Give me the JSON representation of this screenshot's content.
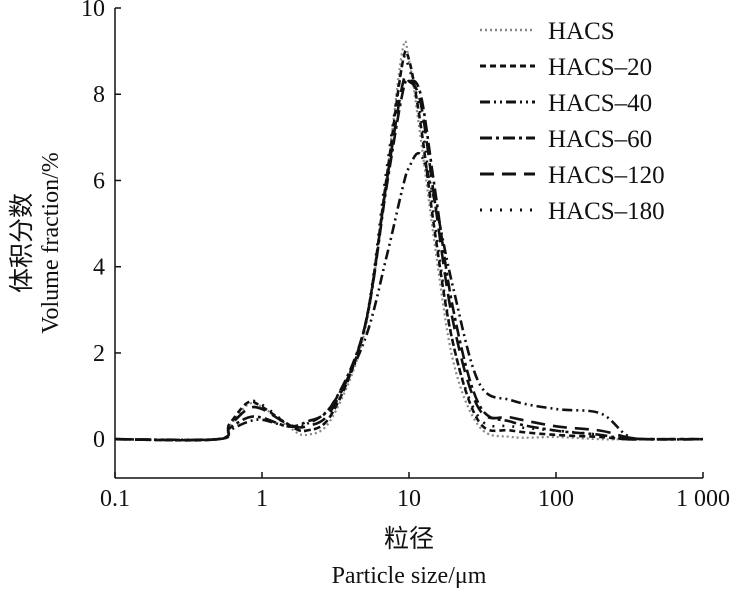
{
  "chart_data": {
    "type": "line",
    "title": "",
    "xlabel_cn": "粒径",
    "xlabel": "Particle size/μm",
    "ylabel_cn": "体积分数",
    "ylabel": "Volume fraction/%",
    "xscale": "log",
    "xlim": [
      0.1,
      1000
    ],
    "ylim": [
      -0.9,
      10
    ],
    "xticks": [
      0.1,
      1,
      10,
      100,
      1000
    ],
    "xtick_labels": [
      "0.1",
      "1",
      "10",
      "100",
      "1 000"
    ],
    "yticks": [
      0,
      2,
      4,
      6,
      8,
      10
    ],
    "ytick_labels": [
      "0",
      "2",
      "4",
      "6",
      "8",
      "10"
    ],
    "grid": false,
    "legend_position": "top-right",
    "x": [
      0.1,
      0.5,
      0.6,
      0.8,
      1,
      1.5,
      2,
      3,
      5,
      7,
      9,
      10,
      12,
      15,
      20,
      30,
      50,
      100,
      200,
      300,
      400,
      1000
    ],
    "series": [
      {
        "name": "HACS",
        "color": "#888888",
        "dash": "2 3",
        "values": [
          0,
          0,
          0.3,
          0.8,
          0.75,
          0.3,
          0.1,
          0.5,
          2.5,
          6,
          9.0,
          8.8,
          7,
          4.5,
          1.8,
          0.3,
          0.05,
          0.05,
          0,
          0,
          0,
          0
        ]
      },
      {
        "name": "HACS–20",
        "color": "#111111",
        "dash": "6 4",
        "values": [
          0,
          0,
          0.35,
          0.85,
          0.75,
          0.35,
          0.2,
          0.6,
          2.6,
          6,
          8.7,
          8.8,
          7.3,
          4.8,
          2.2,
          0.4,
          0.2,
          0.1,
          0.05,
          0,
          0,
          0
        ]
      },
      {
        "name": "HACS–40",
        "color": "#111111",
        "dash": "10 4 2 4 2 4",
        "values": [
          0,
          0,
          0.2,
          0.4,
          0.45,
          0.3,
          0.35,
          0.8,
          2.3,
          4.2,
          5.8,
          6.3,
          6.6,
          5.5,
          3.5,
          1.3,
          0.9,
          0.7,
          0.6,
          0.1,
          0,
          0
        ]
      },
      {
        "name": "HACS–60",
        "color": "#111111",
        "dash": "12 4 3 4",
        "values": [
          0,
          0,
          0.25,
          0.5,
          0.5,
          0.3,
          0.4,
          0.8,
          2.6,
          5.8,
          8.0,
          8.3,
          8.0,
          5.8,
          3.0,
          0.8,
          0.4,
          0.2,
          0.1,
          0,
          0,
          0
        ]
      },
      {
        "name": "HACS–120",
        "color": "#111111",
        "dash": "14 8",
        "values": [
          0,
          0,
          0.3,
          0.7,
          0.7,
          0.35,
          0.3,
          0.7,
          2.6,
          5.9,
          8.2,
          8.3,
          7.8,
          5.5,
          2.7,
          0.7,
          0.5,
          0.3,
          0.2,
          0.05,
          0,
          0
        ]
      },
      {
        "name": "HACS–180",
        "color": "#111111",
        "dash": "2 8",
        "values": [
          0,
          0,
          0.35,
          0.85,
          0.8,
          0.35,
          0.2,
          0.6,
          2.6,
          6.2,
          8.7,
          8.6,
          7.5,
          5,
          2.2,
          0.5,
          0.3,
          0.2,
          0.1,
          0,
          0,
          0
        ]
      }
    ]
  }
}
